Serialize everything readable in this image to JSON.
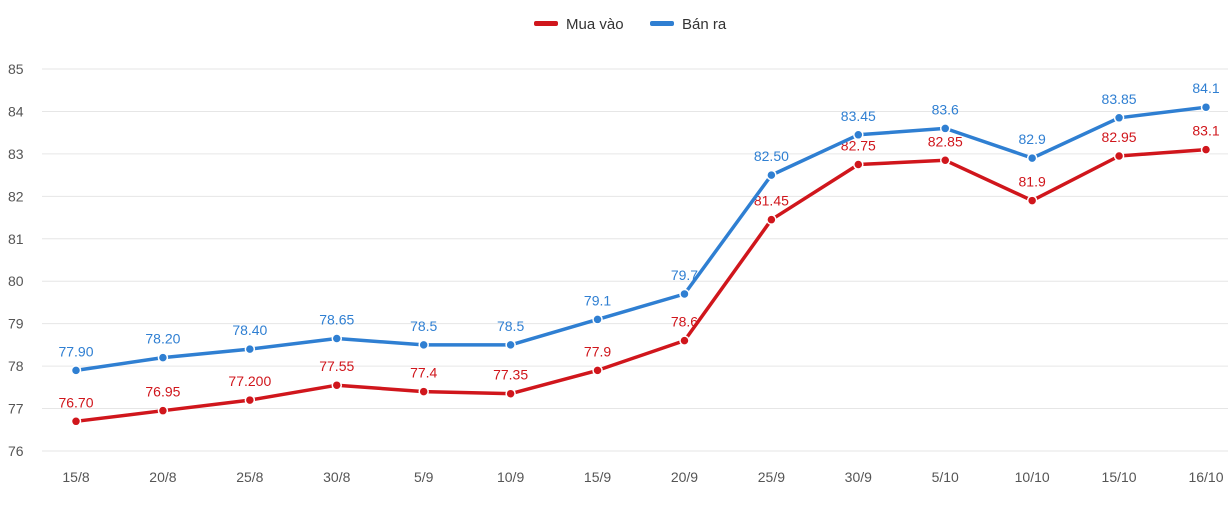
{
  "chart_data": {
    "type": "line",
    "categories": [
      "15/8",
      "20/8",
      "25/8",
      "30/8",
      "5/9",
      "10/9",
      "15/9",
      "20/9",
      "25/9",
      "30/9",
      "5/10",
      "10/10",
      "15/10",
      "16/10"
    ],
    "ylim": [
      76,
      85
    ],
    "yticks": [
      76,
      77,
      78,
      79,
      80,
      81,
      82,
      83,
      84,
      85
    ],
    "grid": true,
    "legend_position": "top-center",
    "series": [
      {
        "name": "Mua vào",
        "color": "#d0161c",
        "values": [
          76.7,
          76.95,
          77.2,
          77.55,
          77.4,
          77.35,
          77.9,
          78.6,
          81.45,
          82.75,
          82.85,
          81.9,
          82.95,
          83.1
        ],
        "labels": [
          "76.70",
          "76.95",
          "77.200",
          "77.55",
          "77.4",
          "77.35",
          "77.9",
          "78.6",
          "81.45",
          "82.75",
          "82.85",
          "81.9",
          "82.95",
          "83.1"
        ]
      },
      {
        "name": "Bán ra",
        "color": "#2f7fd2",
        "values": [
          77.9,
          78.2,
          78.4,
          78.65,
          78.5,
          78.5,
          79.1,
          79.7,
          82.5,
          83.45,
          83.6,
          82.9,
          83.85,
          84.1
        ],
        "labels": [
          "77.90",
          "78.20",
          "78.40",
          "78.65",
          "78.5",
          "78.5",
          "79.1",
          "79.7",
          "82.50",
          "83.45",
          "83.6",
          "82.9",
          "83.85",
          "84.1"
        ]
      }
    ]
  }
}
